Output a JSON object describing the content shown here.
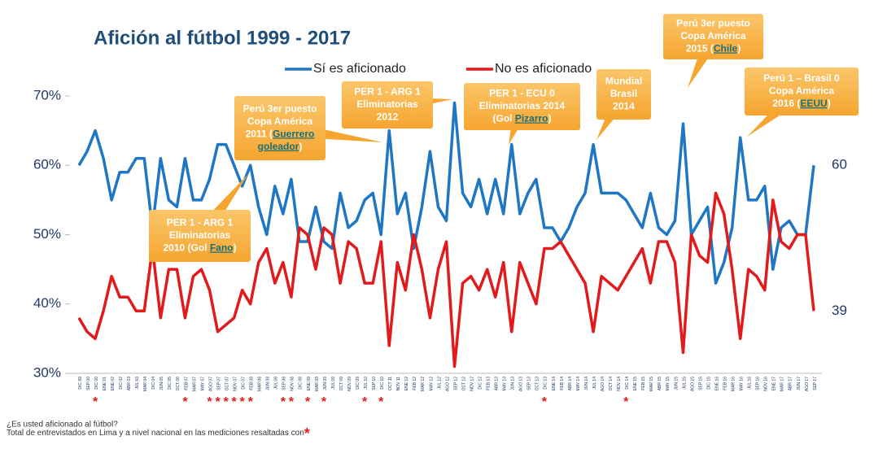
{
  "chart_data": {
    "type": "line",
    "title": "Afición al fútbol 1999 - 2017",
    "categories": [
      "DIC 99",
      "SEP 00",
      "DIC 00",
      "ENE 01",
      "ENE 02",
      "DIC 02",
      "ABR 03",
      "JUL 03",
      "MAR 04",
      "DIC 04",
      "JUN 05",
      "DIC 05",
      "OCT 06",
      "FEB 07",
      "MAR 07",
      "MAY 07",
      "AGO 07",
      "SEP 07",
      "OCT 07",
      "NOV 07",
      "DIC 07",
      "FEB 08",
      "MAR 08",
      "JUN 08",
      "JUL 08",
      "SEP 08",
      "NOV 08",
      "DIC 08",
      "ENE 09",
      "MAR 09",
      "JUN 09",
      "JUL 09",
      "OCT 09",
      "NOV 09",
      "DIC 09",
      "JUL 10",
      "SEP 10",
      "DIC 10",
      "OCT 11",
      "NOV 11",
      "ENE 12",
      "FEB 12",
      "MAR 12",
      "MAY 12",
      "JUL 12",
      "AGO 12",
      "SEP 12",
      "OCT 12",
      "NOV 12",
      "DIC 12",
      "FEB 13",
      "ABR 13",
      "MAY 13",
      "JUN 13",
      "AGO 13",
      "SEP 13",
      "OCT 13",
      "DIC 13",
      "ENE 14",
      "FEB 14",
      "ABR 14",
      "MAY 14",
      "JUN 14",
      "JUL 14",
      "AGO 14",
      "OCT 14",
      "NOV 14",
      "DIC 14",
      "ENE 15",
      "FEB 15",
      "MAR 15",
      "ABR 15",
      "MAY 15",
      "JUN 15",
      "JUL 15",
      "AGO 15",
      "SEP 15",
      "DIC 15",
      "ENE 16",
      "FEB 16",
      "MAR 16",
      "MAY 16",
      "JUL 16",
      "SEP 16",
      "NOV 16",
      "ENE 17",
      "MAR 17",
      "ABR 17",
      "JUN 17",
      "AGO 17",
      "SEP 17"
    ],
    "series": [
      {
        "name": "Sí es aficionado",
        "color": "#1f77c4",
        "values": [
          60,
          62,
          65,
          61,
          55,
          59,
          59,
          61,
          61,
          51,
          61,
          55,
          54,
          61,
          55,
          55,
          58,
          63,
          63,
          60,
          57,
          60,
          54,
          50,
          57,
          53,
          58,
          49,
          49,
          54,
          49,
          48,
          56,
          51,
          52,
          55,
          56,
          50,
          65,
          53,
          56,
          48,
          54,
          62,
          54,
          52,
          69,
          56,
          54,
          58,
          53,
          58,
          53,
          63,
          53,
          56,
          58,
          51,
          51,
          49,
          51,
          54,
          56,
          63,
          56,
          56,
          56,
          55,
          53,
          51,
          56,
          51,
          50,
          52,
          66,
          50,
          52,
          54,
          43,
          46,
          51,
          64,
          55,
          55,
          57,
          45,
          51,
          52,
          50,
          50,
          60
        ]
      },
      {
        "name": "No es aficionado",
        "color": "#e31a1c",
        "values": [
          38,
          36,
          35,
          39,
          44,
          41,
          41,
          39,
          39,
          48,
          38,
          45,
          45,
          38,
          44,
          45,
          42,
          36,
          37,
          38,
          42,
          40,
          46,
          48,
          43,
          46,
          41,
          51,
          50,
          45,
          51,
          50,
          43,
          49,
          48,
          43,
          43,
          49,
          34,
          46,
          42,
          50,
          45,
          38,
          45,
          49,
          31,
          43,
          44,
          42,
          45,
          41,
          46,
          36,
          46,
          43,
          40,
          48,
          48,
          49,
          47,
          45,
          43,
          36,
          44,
          43,
          42,
          44,
          46,
          48,
          43,
          49,
          49,
          46,
          33,
          50,
          47,
          46,
          56,
          53,
          45,
          35,
          45,
          44,
          42,
          55,
          49,
          48,
          50,
          50,
          39
        ]
      }
    ],
    "ylim": [
      30,
      70
    ],
    "yticks": [
      {
        "value": 30,
        "label": "30%"
      },
      {
        "value": 40,
        "label": "40%"
      },
      {
        "value": 50,
        "label": "50%"
      },
      {
        "value": 60,
        "label": "60%"
      },
      {
        "value": 70,
        "label": "70%"
      }
    ],
    "highlight_marker": "*",
    "highlighted": [
      2,
      13,
      16,
      17,
      18,
      19,
      20,
      21,
      25,
      26,
      28,
      30,
      35,
      37,
      57,
      67
    ],
    "annotations": [
      {
        "lines": [
          [
            {
              "text": "PER 1 -  ARG 1"
            }
          ],
          [
            {
              "text": "Eliminatorias"
            }
          ],
          [
            {
              "text": "2010 (Gol "
            },
            {
              "link": "Fano"
            },
            {
              "text": ")"
            }
          ]
        ]
      },
      {
        "lines": [
          [
            {
              "text": "Perú 3er puesto"
            }
          ],
          [
            {
              "text": "Copa América"
            }
          ],
          [
            {
              "text": "2011 ("
            },
            {
              "link": "Guerrero"
            }
          ],
          [
            {
              "link": "goleador"
            },
            {
              "text": ")"
            }
          ]
        ]
      },
      {
        "lines": [
          [
            {
              "text": "PER 1 -  ARG 1"
            }
          ],
          [
            {
              "text": "Eliminatorias"
            }
          ],
          [
            {
              "text": "2012"
            }
          ]
        ]
      },
      {
        "lines": [
          [
            {
              "text": "PER 1 -  ECU 0"
            }
          ],
          [
            {
              "text": "Eliminatorias 2014"
            }
          ],
          [
            {
              "text": "(Gol "
            },
            {
              "link": "Pizarro"
            },
            {
              "text": ")"
            }
          ]
        ]
      },
      {
        "lines": [
          [
            {
              "text": "Mundial"
            }
          ],
          [
            {
              "text": "Brasil"
            }
          ],
          [
            {
              "text": "2014"
            }
          ]
        ]
      },
      {
        "lines": [
          [
            {
              "text": "Perú 3er puesto"
            }
          ],
          [
            {
              "text": "Copa América"
            }
          ],
          [
            {
              "text": "2015 ("
            },
            {
              "link": "Chile"
            },
            {
              "text": ")"
            }
          ]
        ]
      },
      {
        "lines": [
          [
            {
              "text": "Perú  1 – Brasil 0"
            }
          ],
          [
            {
              "text": "Copa América"
            }
          ],
          [
            {
              "text": "2016 ("
            },
            {
              "link": "EEUU"
            },
            {
              "text": ")"
            }
          ]
        ]
      }
    ],
    "footnote": [
      "¿Es usted aficionado al fútbol?",
      "Total de entrevistados en Lima y a nivel nacional en las mediciones resaltadas con"
    ]
  }
}
